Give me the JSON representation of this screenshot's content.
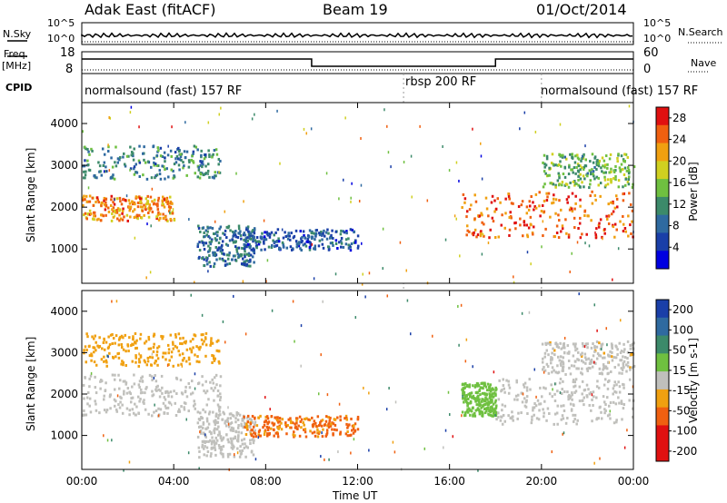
{
  "header": {
    "radar": "Adak East (fitACF)",
    "beam": "Beam 19",
    "date": "01/Oct/2014"
  },
  "left_labels": {
    "nsky": "N.Sky",
    "freq": "Freq.",
    "freq_unit": "[MHz]",
    "cpid": "CPID"
  },
  "right_labels": {
    "nsearch": "N.Search",
    "nave": "Nave"
  },
  "noise_axis": {
    "left_top": "10^5",
    "left_bottom": "10^0",
    "right_top": "10^5",
    "right_bottom": "10^0"
  },
  "freq_axis": {
    "top": "18",
    "bottom": "8"
  },
  "nave_axis": {
    "top": "60",
    "bottom": "0"
  },
  "cpid_labels": [
    {
      "text": "normalsound (fast) 157 RF"
    },
    {
      "text": "rbsp 200 RF"
    },
    {
      "text": "normalsound (fast) 157 RF"
    }
  ],
  "colors": {
    "scale": [
      "#0000e0",
      "#1a3fa8",
      "#2f6aa0",
      "#3c8a6a",
      "#6fc040",
      "#d0d020",
      "#f0a010",
      "#f06010",
      "#e01010"
    ],
    "gscatter": "#c0c0bc"
  },
  "chart_data": [
    {
      "type": "heatmap",
      "name": "power",
      "xlabel": "",
      "ylabel": "Slant Range [km]",
      "x_range": [
        "00:00",
        "24:00"
      ],
      "ylim": [
        180,
        4500
      ],
      "yticks": [
        "1000",
        "2000",
        "3000",
        "4000"
      ],
      "colorbar": {
        "label": "Power [dB]",
        "ticks": [
          "4",
          "8",
          "12",
          "16",
          "20",
          "24",
          "28"
        ],
        "range": [
          0,
          30
        ]
      },
      "regions": [
        {
          "t0": 0.0,
          "t1": 4.0,
          "r0": 1700,
          "r1": 2300,
          "level": 24
        },
        {
          "t0": 0.0,
          "t1": 6.0,
          "r0": 2700,
          "r1": 3500,
          "level": 10
        },
        {
          "t0": 5.0,
          "t1": 7.5,
          "r0": 600,
          "r1": 1600,
          "level": 8
        },
        {
          "t0": 7.0,
          "t1": 12.0,
          "r0": 1000,
          "r1": 1500,
          "level": 6
        },
        {
          "t0": 16.5,
          "t1": 24.0,
          "r0": 1300,
          "r1": 2400,
          "level": 26
        },
        {
          "t0": 20.0,
          "t1": 24.0,
          "r0": 2500,
          "r1": 3300,
          "level": 14
        }
      ]
    },
    {
      "type": "heatmap",
      "name": "velocity",
      "xlabel": "Time UT",
      "ylabel": "Slant Range [km]",
      "xticks": [
        "00:00",
        "04:00",
        "08:00",
        "12:00",
        "16:00",
        "20:00",
        "00:00"
      ],
      "ylim": [
        180,
        4500
      ],
      "yticks": [
        "1000",
        "2000",
        "3000",
        "4000"
      ],
      "colorbar": {
        "label": "Velocity [m s-1]",
        "ticks": [
          "200",
          "100",
          "50",
          "15",
          "-15",
          "-50",
          "-100",
          "-200"
        ]
      },
      "regions": [
        {
          "t0": 0.0,
          "t1": 6.0,
          "r0": 1500,
          "r1": 2500,
          "value": 0
        },
        {
          "t0": 0.0,
          "t1": 6.0,
          "r0": 2700,
          "r1": 3500,
          "value": -60
        },
        {
          "t0": 5.0,
          "t1": 7.5,
          "r0": 500,
          "r1": 1600,
          "value": 0
        },
        {
          "t0": 7.0,
          "t1": 12.0,
          "r0": 1000,
          "r1": 1500,
          "value": -80
        },
        {
          "t0": 16.5,
          "t1": 18.0,
          "r0": 1500,
          "r1": 2300,
          "value": 40
        },
        {
          "t0": 18.0,
          "t1": 24.0,
          "r0": 1300,
          "r1": 2400,
          "value": 0
        },
        {
          "t0": 20.0,
          "t1": 24.0,
          "r0": 2500,
          "r1": 3300,
          "value": -20
        }
      ]
    }
  ]
}
